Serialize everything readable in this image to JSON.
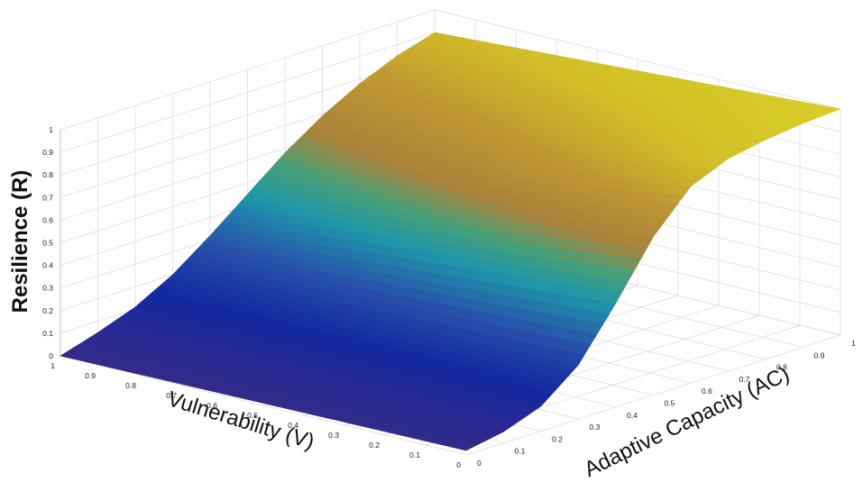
{
  "chart_data": {
    "type": "surface3d",
    "zlabel": "Resilience (R)",
    "xlabel": "Adaptive Capacity (AC)",
    "ylabel": "Vulnerability (V)",
    "xlim": [
      0,
      1
    ],
    "ylim": [
      0,
      1
    ],
    "zlim": [
      0,
      1
    ],
    "grid": true,
    "colormap": "parula",
    "x_ticks": [
      "0",
      "0.1",
      "0.2",
      "0.3",
      "0.4",
      "0.5",
      "0.6",
      "0.7",
      "0.8",
      "0.9",
      "1"
    ],
    "y_ticks": [
      "0",
      "0.1",
      "0.2",
      "0.3",
      "0.4",
      "0.5",
      "0.6",
      "0.7",
      "0.8",
      "0.9",
      "1"
    ],
    "z_ticks": [
      "0",
      "0.1",
      "0.2",
      "0.3",
      "0.4",
      "0.5",
      "0.6",
      "0.7",
      "0.8",
      "0.9",
      "1"
    ],
    "surface_profile": {
      "adaptive_capacity": [
        0,
        0.1,
        0.2,
        0.3,
        0.4,
        0.5,
        0.6,
        0.7,
        0.8,
        0.9,
        1
      ],
      "resilience_at_v0": [
        0.02,
        0.05,
        0.11,
        0.24,
        0.46,
        0.7,
        0.87,
        0.94,
        0.97,
        0.99,
        1.0
      ],
      "resilience_at_v1": [
        0.0,
        0.05,
        0.11,
        0.2,
        0.32,
        0.45,
        0.58,
        0.69,
        0.78,
        0.85,
        0.9
      ]
    }
  }
}
